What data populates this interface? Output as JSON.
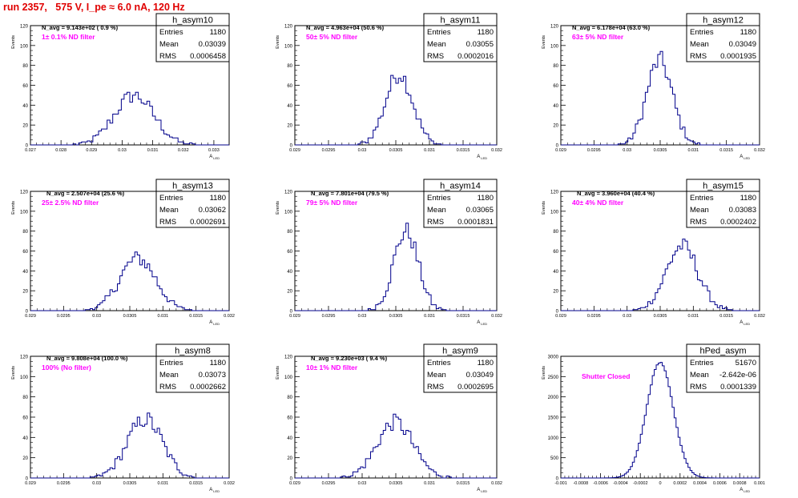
{
  "title": "run 2357,   575 V, I_pe ≈ 6.0 nA, 120 Hz",
  "ylabel": "Events",
  "xlabel_main": "A",
  "xlabel_sub": "LED",
  "colors": {
    "title": "#e00000",
    "histogram": "#00008b",
    "annotation": "#ff00ff"
  },
  "chart_data": [
    {
      "type": "histogram",
      "name": "h_asym10",
      "navg": "N_avg = 9.143e+02 ( 0.9 %)",
      "label": "1± 0.1% ND filter",
      "stats": {
        "entries": "1180",
        "mean": "0.03039",
        "rms": "0.0006458"
      },
      "xlim": [
        0.027,
        0.0335
      ],
      "ylim": [
        0,
        120
      ],
      "xticks": [
        0.027,
        0.028,
        0.029,
        0.03,
        0.031,
        0.032,
        0.033
      ],
      "xtick_labels": [
        "0.027",
        "0.028",
        "0.029",
        "0.03",
        "0.031",
        "0.032",
        "0.033"
      ],
      "yticks": [
        0,
        20,
        40,
        60,
        80,
        100,
        120
      ],
      "mean": 0.03039,
      "sigma": 0.0006458,
      "peak": 50,
      "nbins": 70
    },
    {
      "type": "histogram",
      "name": "h_asym11",
      "navg": "N_avg = 4.963e+04 (50.6 %)",
      "label": "50± 5% ND filter",
      "stats": {
        "entries": "1180",
        "mean": "0.03055",
        "rms": "0.0002016"
      },
      "xlim": [
        0.029,
        0.032
      ],
      "ylim": [
        0,
        120
      ],
      "xticks": [
        0.029,
        0.0295,
        0.03,
        0.0305,
        0.031,
        0.0315,
        0.032
      ],
      "xtick_labels": [
        "0.029",
        "0.0295",
        "0.03",
        "0.0305",
        "0.031",
        "0.0315",
        "0.032"
      ],
      "yticks": [
        0,
        20,
        40,
        60,
        80,
        100,
        120
      ],
      "mean": 0.03055,
      "sigma": 0.0002016,
      "peak": 72,
      "nbins": 80
    },
    {
      "type": "histogram",
      "name": "h_asym12",
      "navg": "N_avg = 6.178e+04 (63.0 %)",
      "label": "63± 5% ND filter",
      "stats": {
        "entries": "1180",
        "mean": "0.03049",
        "rms": "0.0001935"
      },
      "xlim": [
        0.029,
        0.032
      ],
      "ylim": [
        0,
        120
      ],
      "xticks": [
        0.029,
        0.0295,
        0.03,
        0.0305,
        0.031,
        0.0315,
        0.032
      ],
      "xtick_labels": [
        "0.029",
        "0.0295",
        "0.03",
        "0.0305",
        "0.031",
        "0.0315",
        "0.032"
      ],
      "yticks": [
        0,
        20,
        40,
        60,
        80,
        100,
        120
      ],
      "mean": 0.03049,
      "sigma": 0.0001935,
      "peak": 85,
      "nbins": 80
    },
    {
      "type": "histogram",
      "name": "h_asym13",
      "navg": "N_avg = 2.507e+04 (25.6 %)",
      "label": "25± 2.5% ND filter",
      "stats": {
        "entries": "1180",
        "mean": "0.03062",
        "rms": "0.0002691"
      },
      "xlim": [
        0.029,
        0.032
      ],
      "ylim": [
        0,
        120
      ],
      "xticks": [
        0.029,
        0.0295,
        0.03,
        0.0305,
        0.031,
        0.0315,
        0.032
      ],
      "xtick_labels": [
        "0.029",
        "0.0295",
        "0.03",
        "0.0305",
        "0.031",
        "0.0315",
        "0.032"
      ],
      "yticks": [
        0,
        20,
        40,
        60,
        80,
        100,
        120
      ],
      "mean": 0.03062,
      "sigma": 0.0002691,
      "peak": 53,
      "nbins": 80
    },
    {
      "type": "histogram",
      "name": "h_asym14",
      "navg": "N_avg = 7.801e+04 (79.5 %)",
      "label": "79± 5% ND filter",
      "stats": {
        "entries": "1180",
        "mean": "0.03065",
        "rms": "0.0001831"
      },
      "xlim": [
        0.029,
        0.032
      ],
      "ylim": [
        0,
        120
      ],
      "xticks": [
        0.029,
        0.0295,
        0.03,
        0.0305,
        0.031,
        0.0315,
        0.032
      ],
      "xtick_labels": [
        "0.029",
        "0.0295",
        "0.03",
        "0.0305",
        "0.031",
        "0.0315",
        "0.032"
      ],
      "yticks": [
        0,
        20,
        40,
        60,
        80,
        100,
        120
      ],
      "mean": 0.03065,
      "sigma": 0.0001831,
      "peak": 80,
      "nbins": 80
    },
    {
      "type": "histogram",
      "name": "h_asym15",
      "navg": "N_avg = 3.960e+04 (40.4 %)",
      "label": "40± 4% ND filter",
      "stats": {
        "entries": "1180",
        "mean": "0.03083",
        "rms": "0.0002402"
      },
      "xlim": [
        0.029,
        0.032
      ],
      "ylim": [
        0,
        120
      ],
      "xticks": [
        0.029,
        0.0295,
        0.03,
        0.0305,
        0.031,
        0.0315,
        0.032
      ],
      "xtick_labels": [
        "0.029",
        "0.0295",
        "0.03",
        "0.0305",
        "0.031",
        "0.0315",
        "0.032"
      ],
      "yticks": [
        0,
        20,
        40,
        60,
        80,
        100,
        120
      ],
      "mean": 0.03083,
      "sigma": 0.0002402,
      "peak": 65,
      "nbins": 80
    },
    {
      "type": "histogram",
      "name": "h_asym8",
      "navg": "N_avg = 9.808e+04 (100.0 %)",
      "label": "100% (No filter)",
      "stats": {
        "entries": "1180",
        "mean": "0.03073",
        "rms": "0.0002662"
      },
      "xlim": [
        0.029,
        0.032
      ],
      "ylim": [
        0,
        120
      ],
      "xticks": [
        0.029,
        0.0295,
        0.03,
        0.0305,
        0.031,
        0.0315,
        0.032
      ],
      "xtick_labels": [
        "0.029",
        "0.0295",
        "0.03",
        "0.0305",
        "0.031",
        "0.0315",
        "0.032"
      ],
      "yticks": [
        0,
        20,
        40,
        60,
        80,
        100,
        120
      ],
      "mean": 0.03073,
      "sigma": 0.0002662,
      "peak": 58,
      "nbins": 80
    },
    {
      "type": "histogram",
      "name": "h_asym9",
      "navg": "N_avg = 9.230e+03 ( 9.4 %)",
      "label": "10± 1% ND filter",
      "stats": {
        "entries": "1180",
        "mean": "0.03049",
        "rms": "0.0002695"
      },
      "xlim": [
        0.029,
        0.032
      ],
      "ylim": [
        0,
        120
      ],
      "xticks": [
        0.029,
        0.0295,
        0.03,
        0.0305,
        0.031,
        0.0315,
        0.032
      ],
      "xtick_labels": [
        "0.029",
        "0.0295",
        "0.03",
        "0.0305",
        "0.031",
        "0.0315",
        "0.032"
      ],
      "yticks": [
        0,
        20,
        40,
        60,
        80,
        100,
        120
      ],
      "mean": 0.03049,
      "sigma": 0.0002695,
      "peak": 55,
      "nbins": 80
    },
    {
      "type": "histogram",
      "name": "hPed_asym",
      "navg": "",
      "label": "Shutter Closed",
      "stats": {
        "entries": "51670",
        "mean": "-2.642e-06",
        "rms": "0.0001339"
      },
      "xlim": [
        -0.001,
        0.001
      ],
      "ylim": [
        0,
        3000
      ],
      "xticks": [
        -0.001,
        -0.0008,
        -0.0006,
        -0.0004,
        -0.0002,
        0,
        0.0002,
        0.0004,
        0.0006,
        0.0008,
        0.001
      ],
      "xtick_labels": [
        "-0.001",
        "-0.0008",
        "-0.0006",
        "-0.0004",
        "-0.0002",
        "0",
        "0.0002",
        "0.0004",
        "0.0006",
        "0.0008",
        "0.001"
      ],
      "yticks": [
        0,
        500,
        1000,
        1500,
        2000,
        2500,
        3000
      ],
      "mean": -2.6e-06,
      "sigma": 0.0001339,
      "peak": 2850,
      "nbins": 100
    }
  ]
}
